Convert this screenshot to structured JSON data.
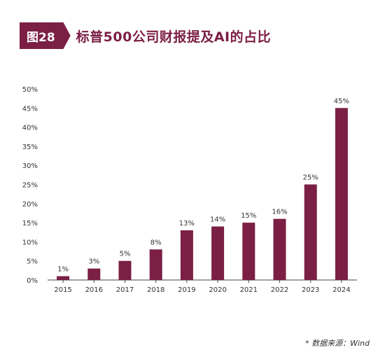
{
  "header": {
    "figure_tag": "图28",
    "title": "标普500公司财报提及AI的占比"
  },
  "colors": {
    "accent": "#7b1f45",
    "bar": "#7b1f45"
  },
  "chart_data": {
    "type": "bar",
    "title": "标普500公司财报提及AI的占比",
    "xlabel": "",
    "ylabel": "",
    "categories": [
      "2015",
      "2016",
      "2017",
      "2018",
      "2019",
      "2020",
      "2021",
      "2022",
      "2023",
      "2024"
    ],
    "values": [
      1,
      3,
      5,
      8,
      13,
      14,
      15,
      16,
      25,
      45
    ],
    "data_labels": [
      "1%",
      "3%",
      "5%",
      "8%",
      "13%",
      "14%",
      "15%",
      "16%",
      "25%",
      "45%"
    ],
    "ylim": [
      0,
      50
    ],
    "yticks": [
      0,
      5,
      10,
      15,
      20,
      25,
      30,
      35,
      40,
      45,
      50
    ],
    "ytick_labels": [
      "0%",
      "5%",
      "10%",
      "15%",
      "20%",
      "25%",
      "30%",
      "35%",
      "40%",
      "45%",
      "50%"
    ],
    "grid": false,
    "legend": "none"
  },
  "footer": {
    "source": "* 数据来源：Wind"
  }
}
